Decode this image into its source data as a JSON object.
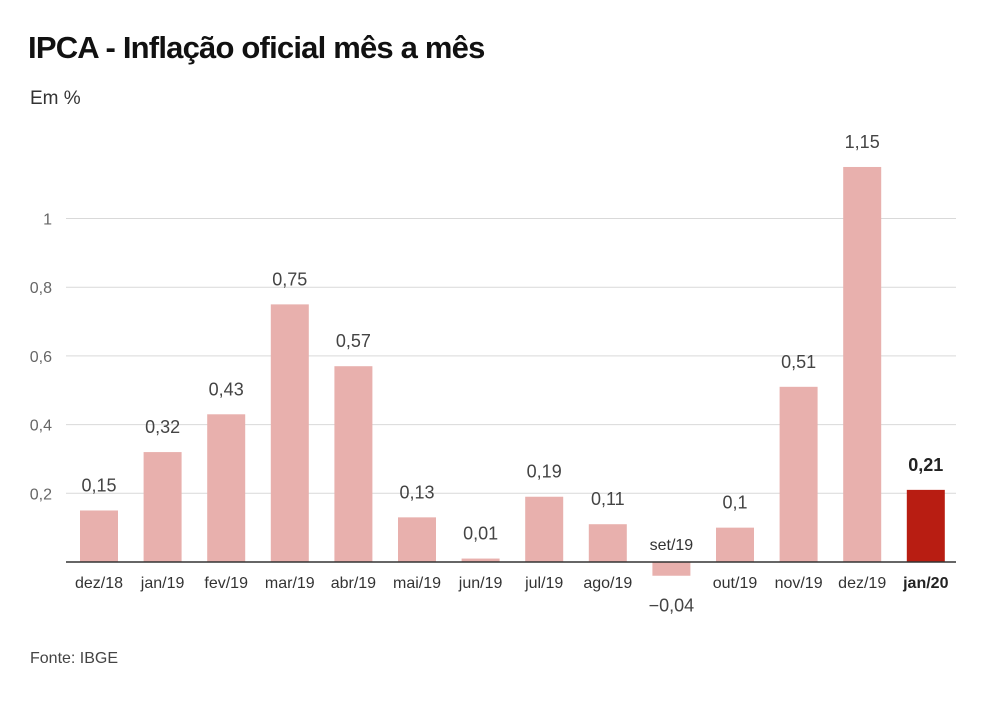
{
  "header": {
    "title": "IPCA - Inflação oficial mês a mês",
    "subtitle": "Em %"
  },
  "footer": {
    "source": "Fonte: IBGE"
  },
  "colors": {
    "bar": "#e8b0ad",
    "highlight": "#b81d12",
    "grid": "#d9d9d9",
    "baseline": "#333333"
  },
  "chart_data": {
    "type": "bar",
    "categories": [
      "dez/18",
      "jan/19",
      "fev/19",
      "mar/19",
      "abr/19",
      "mai/19",
      "jun/19",
      "jul/19",
      "ago/19",
      "set/19",
      "out/19",
      "nov/19",
      "dez/19",
      "jan/20"
    ],
    "values": [
      0.15,
      0.32,
      0.43,
      0.75,
      0.57,
      0.13,
      0.01,
      0.19,
      0.11,
      -0.04,
      0.1,
      0.51,
      1.15,
      0.21
    ],
    "value_labels": [
      "0,15",
      "0,32",
      "0,43",
      "0,75",
      "0,57",
      "0,13",
      "0,01",
      "0,19",
      "0,11",
      "−0,04",
      "0,1",
      "0,51",
      "1,15",
      "0,21"
    ],
    "highlight_category": "jan/20",
    "yticks": [
      0.2,
      0.4,
      0.6,
      0.8,
      1
    ],
    "ytick_labels": [
      "0,2",
      "0,4",
      "0,6",
      "0,8",
      "1"
    ],
    "ylim": [
      -0.04,
      1.15
    ],
    "grid": true,
    "legend": "none"
  }
}
